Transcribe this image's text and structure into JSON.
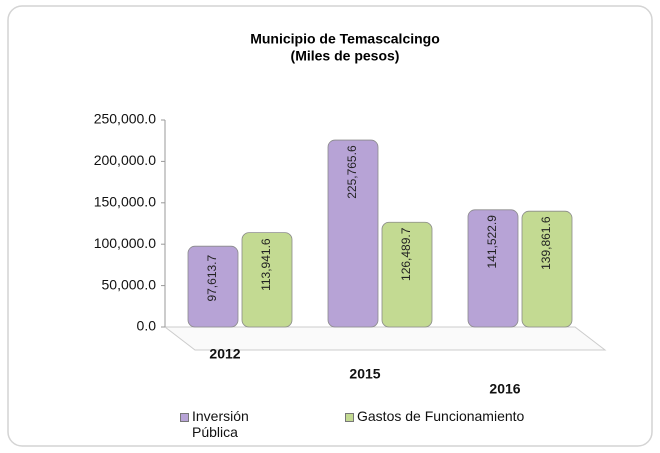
{
  "chart_data": {
    "type": "bar",
    "title": "Municipio de Temascalcingo",
    "subtitle": "(Miles de pesos)",
    "categories": [
      "2012",
      "2015",
      "2016"
    ],
    "series": [
      {
        "name": "Inversión Pública",
        "color": "#b7a3d6",
        "values": [
          97613.7,
          225765.6,
          141522.9
        ],
        "value_labels": [
          "97,613.7",
          "225,765.6",
          "141,522.9"
        ]
      },
      {
        "name": "Gastos de Funcionamiento",
        "color": "#c3da92",
        "values": [
          113941.6,
          126489.7,
          139861.6
        ],
        "value_labels": [
          "113,941.6",
          "126,489.7",
          "139,861.6"
        ]
      }
    ],
    "ylim": [
      0,
      250000
    ],
    "yticks": [
      {
        "value": 0,
        "label": "0.0"
      },
      {
        "value": 50000,
        "label": "50,000.0"
      },
      {
        "value": 100000,
        "label": "100,000.0"
      },
      {
        "value": 150000,
        "label": "150,000.0"
      },
      {
        "value": 200000,
        "label": "200,000.0"
      },
      {
        "value": 250000,
        "label": "250,000.0"
      }
    ]
  }
}
